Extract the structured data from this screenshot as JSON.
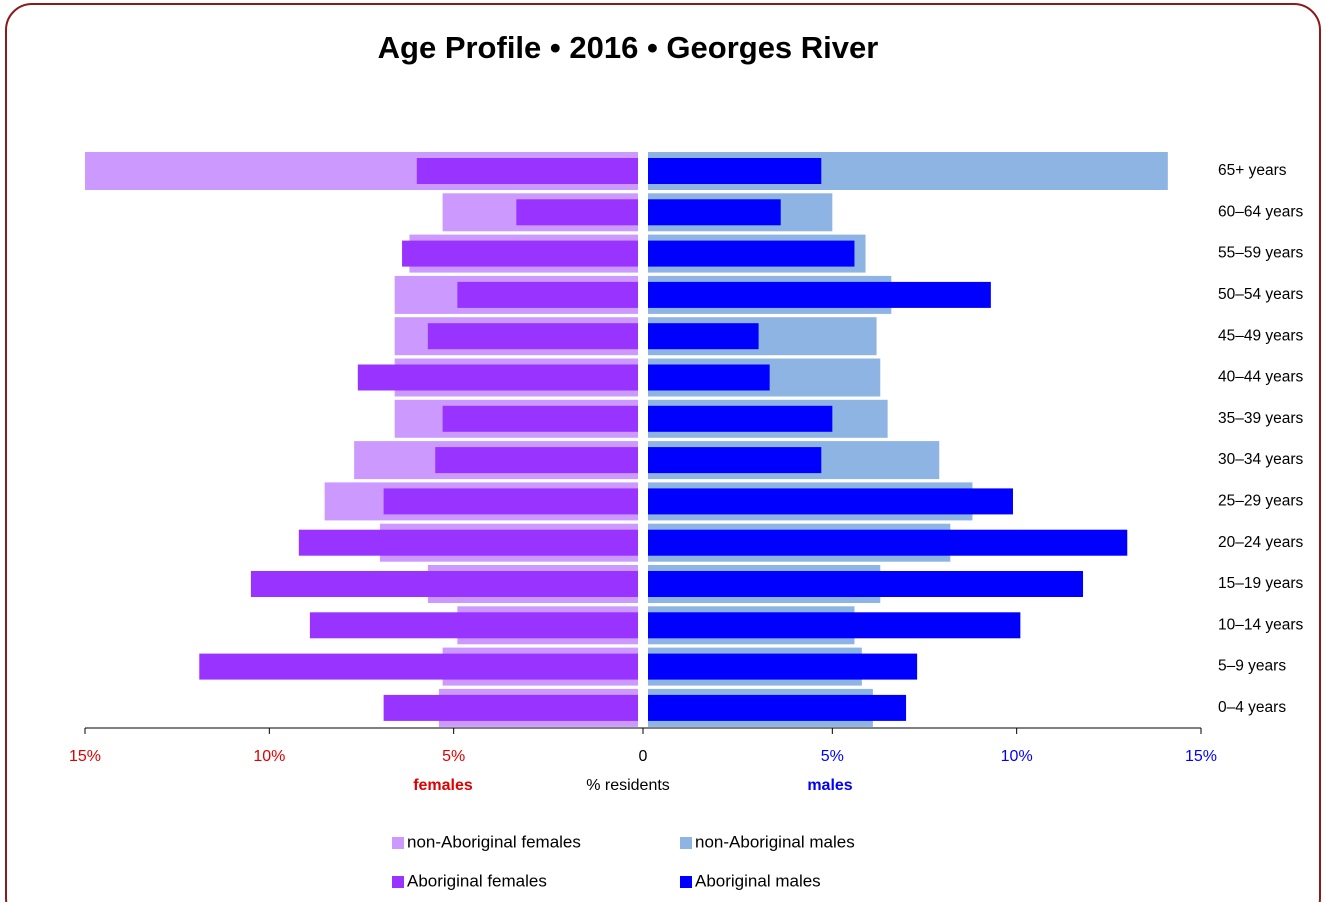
{
  "chart_data": {
    "type": "pyramid",
    "title": "Age Profile  •  2016  •  Georges River",
    "categories": [
      "65+ years",
      "60–64 years",
      "55–59 years",
      "50–54 years",
      "45–49 years",
      "40–44 years",
      "35–39 years",
      "30–34 years",
      "25–29 years",
      "20–24 years",
      "15–19 years",
      "10–14 years",
      "5–9 years",
      "0–4 years"
    ],
    "series": [
      {
        "name": "non-Aboriginal females",
        "color": "#cc99ff",
        "side": "left",
        "values": [
          15.0,
          5.3,
          6.2,
          6.6,
          6.6,
          6.6,
          6.6,
          7.7,
          8.5,
          7.0,
          5.7,
          4.9,
          5.3,
          5.4
        ]
      },
      {
        "name": "Aboriginal females",
        "color": "#9933ff",
        "side": "left",
        "values": [
          6.0,
          3.3,
          6.4,
          4.9,
          5.7,
          7.6,
          5.3,
          5.5,
          6.9,
          9.2,
          10.5,
          8.9,
          11.9,
          6.9
        ]
      },
      {
        "name": "non-Aboriginal males",
        "color": "#8db4e2",
        "side": "right",
        "values": [
          14.1,
          5.0,
          5.9,
          6.6,
          6.2,
          6.3,
          6.5,
          7.9,
          8.8,
          8.2,
          6.3,
          5.6,
          5.8,
          6.1
        ]
      },
      {
        "name": "Aboriginal males",
        "color": "#0000ff",
        "side": "right",
        "values": [
          4.7,
          3.6,
          5.6,
          9.3,
          3.0,
          3.3,
          5.0,
          4.7,
          9.9,
          13.0,
          11.8,
          10.1,
          7.3,
          7.0
        ]
      }
    ],
    "xlim": [
      0,
      15
    ],
    "xticks": [
      0,
      {
        "value": 5,
        "label": "5%"
      },
      {
        "value": 10,
        "label": "10%"
      },
      {
        "value": 15,
        "label": "15%"
      }
    ],
    "left_label": "females",
    "right_label": "males",
    "xlabel": "% residents"
  }
}
